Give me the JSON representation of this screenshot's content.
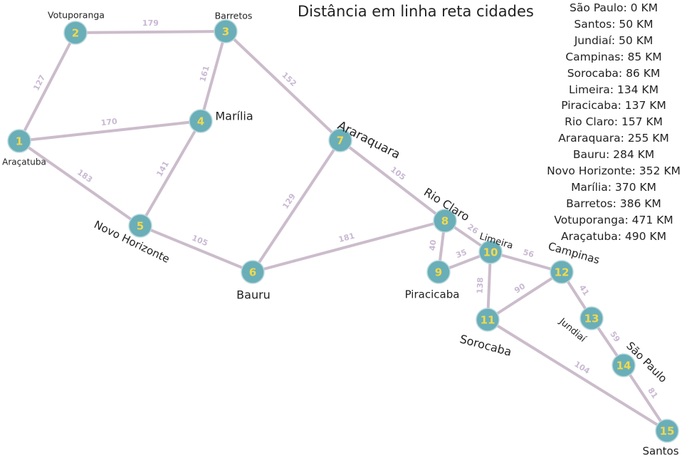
{
  "title": "Distância em linha reta cidades",
  "distances": [
    "São Paulo: 0 KM",
    "Santos: 50 KM",
    "Jundiaí: 50 KM",
    "Campinas: 85 KM",
    "Sorocaba: 86 KM",
    "Limeira: 134 KM",
    "Piracicaba: 137 KM",
    "Rio Claro: 157 KM",
    "Araraquara: 255 KM",
    "Bauru: 284 KM",
    "Novo Horizonte: 352 KM",
    "Marília: 370 KM",
    "Barretos: 386 KM",
    "Votuporanga: 471 KM",
    "Araçatuba: 490 KM"
  ],
  "colors": {
    "node": "#6aaeb8",
    "node_label": "#f2d94b",
    "edge": "#cbbccb",
    "weight": "#c9b9d3",
    "text": "#222222"
  },
  "nodes": [
    {
      "id": "1",
      "city": "Araçatuba"
    },
    {
      "id": "2",
      "city": "Votuporanga"
    },
    {
      "id": "3",
      "city": "Barretos"
    },
    {
      "id": "4",
      "city": "Marília"
    },
    {
      "id": "5",
      "city": "Novo Horizonte"
    },
    {
      "id": "6",
      "city": "Bauru"
    },
    {
      "id": "7",
      "city": "Araraquara"
    },
    {
      "id": "8",
      "city": "Rio Claro"
    },
    {
      "id": "9",
      "city": "Piracicaba"
    },
    {
      "id": "10",
      "city": "Limeira"
    },
    {
      "id": "11",
      "city": "Sorocaba"
    },
    {
      "id": "12",
      "city": "Campinas"
    },
    {
      "id": "13",
      "city": "Jundiaí"
    },
    {
      "id": "14",
      "city": "São Paulo"
    },
    {
      "id": "15",
      "city": "Santos"
    }
  ],
  "edges": [
    {
      "from": "2",
      "to": "3",
      "weight": "179"
    },
    {
      "from": "1",
      "to": "2",
      "weight": "127"
    },
    {
      "from": "3",
      "to": "4",
      "weight": "161"
    },
    {
      "from": "3",
      "to": "7",
      "weight": "152"
    },
    {
      "from": "1",
      "to": "4",
      "weight": "170"
    },
    {
      "from": "1",
      "to": "5",
      "weight": "183"
    },
    {
      "from": "4",
      "to": "5",
      "weight": "141"
    },
    {
      "from": "5",
      "to": "6",
      "weight": "105"
    },
    {
      "from": "6",
      "to": "7",
      "weight": "129"
    },
    {
      "from": "7",
      "to": "8",
      "weight": "105"
    },
    {
      "from": "6",
      "to": "8",
      "weight": "181"
    },
    {
      "from": "8",
      "to": "9",
      "weight": "40"
    },
    {
      "from": "8",
      "to": "10",
      "weight": "26"
    },
    {
      "from": "9",
      "to": "10",
      "weight": "35"
    },
    {
      "from": "10",
      "to": "11",
      "weight": "138"
    },
    {
      "from": "10",
      "to": "12",
      "weight": "56"
    },
    {
      "from": "11",
      "to": "12",
      "weight": "90"
    },
    {
      "from": "12",
      "to": "13",
      "weight": "41"
    },
    {
      "from": "13",
      "to": "14",
      "weight": "59"
    },
    {
      "from": "11",
      "to": "15",
      "weight": "104"
    },
    {
      "from": "14",
      "to": "15",
      "weight": "81"
    }
  ]
}
